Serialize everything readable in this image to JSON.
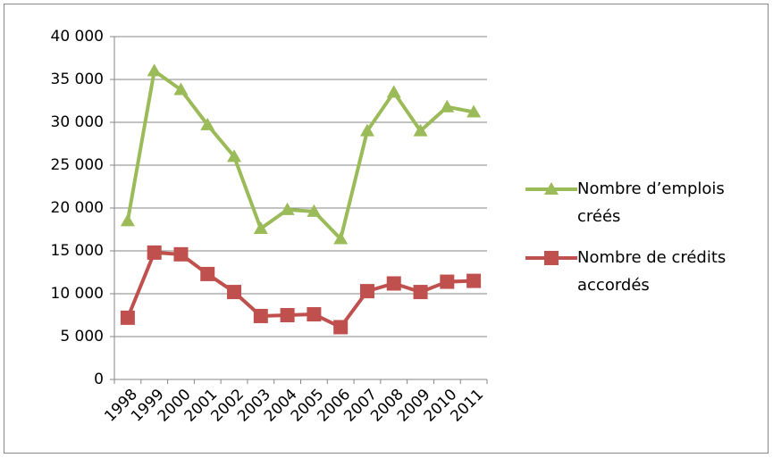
{
  "chart_data": {
    "type": "line",
    "categories": [
      "1998",
      "1999",
      "2000",
      "2001",
      "2002",
      "2003",
      "2004",
      "2005",
      "2006",
      "2007",
      "2008",
      "2009",
      "2010",
      "2011"
    ],
    "series": [
      {
        "name": "Nombre d’emplois créés",
        "color": "#9bbb59",
        "marker": "triangle",
        "values": [
          18500,
          36000,
          33800,
          29700,
          26000,
          17600,
          19800,
          19600,
          16400,
          29000,
          33500,
          29000,
          31800,
          31200
        ]
      },
      {
        "name": "Nombre de crédits accordés",
        "color": "#c0504d",
        "marker": "square",
        "values": [
          7200,
          14800,
          14600,
          12300,
          10200,
          7400,
          7500,
          7600,
          6100,
          10300,
          11200,
          10200,
          11400,
          11500
        ]
      }
    ],
    "ylim": [
      0,
      40000
    ],
    "yticks": [
      0,
      {
        "value": 5000,
        "label": "5 000"
      },
      {
        "value": 10000,
        "label": "10 000"
      },
      {
        "value": 15000,
        "label": "15 000"
      },
      {
        "value": 20000,
        "label": "20 000"
      },
      {
        "value": 25000,
        "label": "25 000"
      },
      {
        "value": 30000,
        "label": "30 000"
      },
      {
        "value": 35000,
        "label": "35 000"
      },
      {
        "value": 40000,
        "label": "40 000"
      }
    ],
    "grid": true,
    "legend": "right"
  }
}
